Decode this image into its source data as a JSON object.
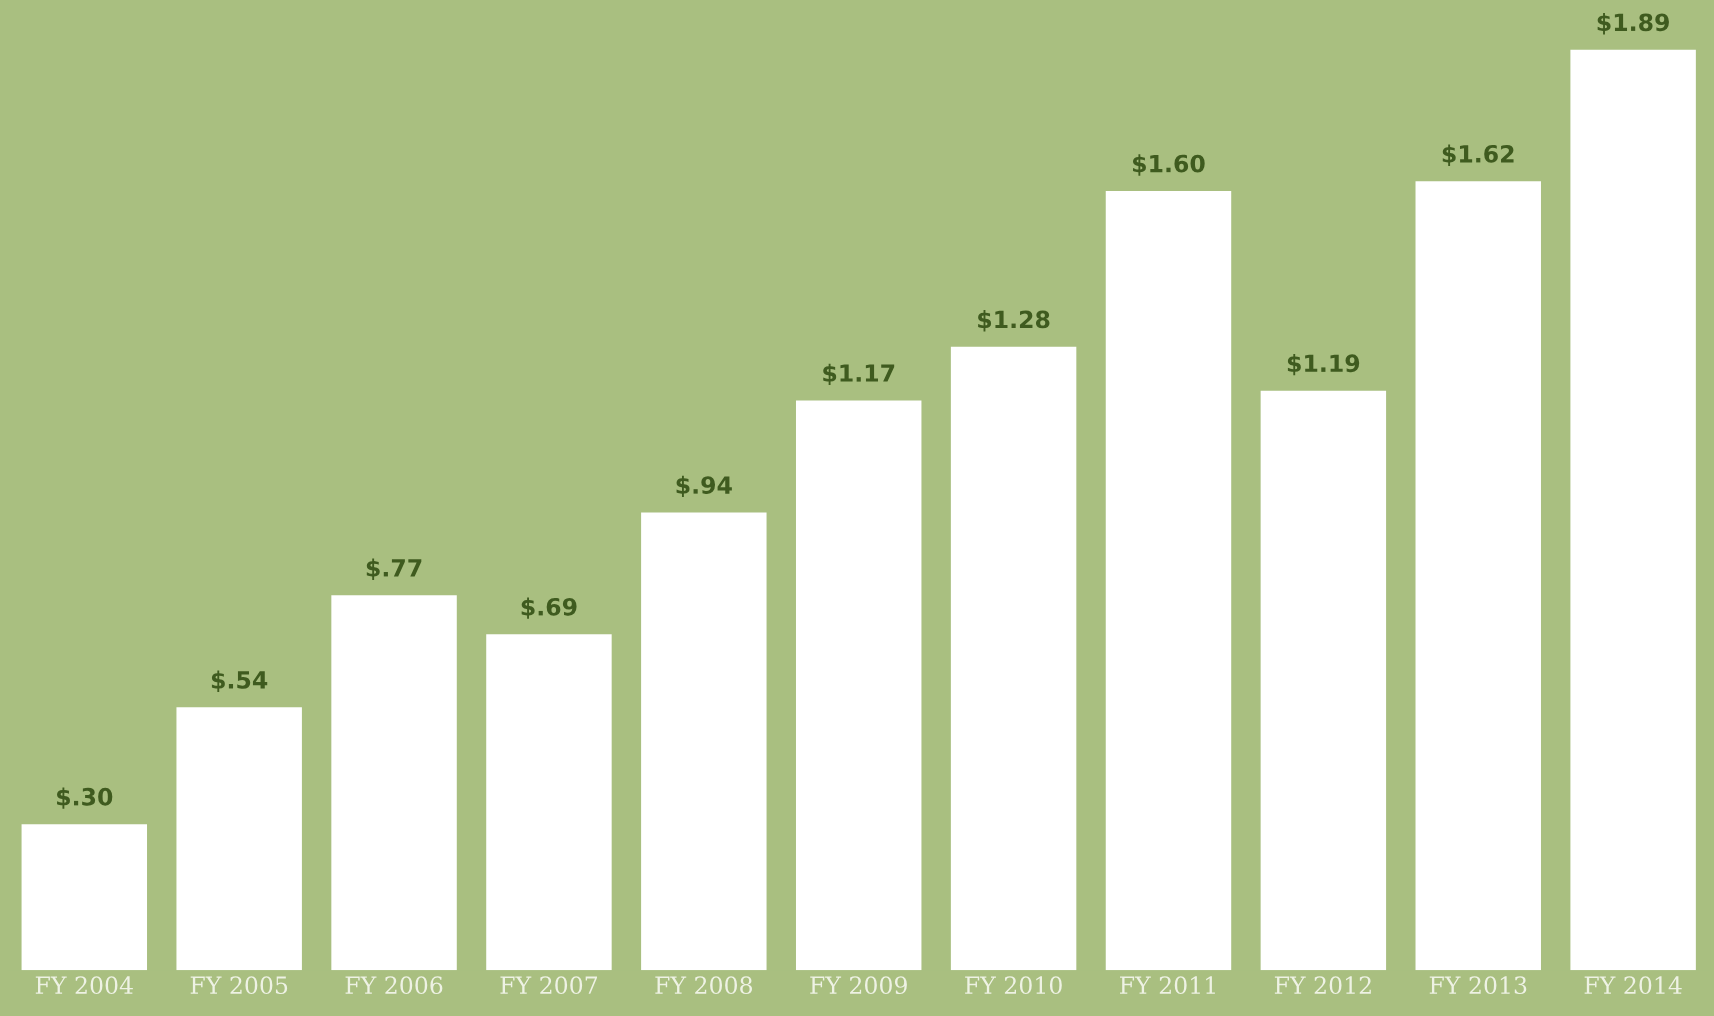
{
  "chart_data": {
    "type": "bar",
    "categories": [
      "FY 2004",
      "FY 2005",
      "FY 2006",
      "FY 2007",
      "FY 2008",
      "FY 2009",
      "FY 2010",
      "FY 2011",
      "FY 2012",
      "FY 2013",
      "FY 2014"
    ],
    "values": [
      0.3,
      0.54,
      0.77,
      0.69,
      0.94,
      1.17,
      1.28,
      1.6,
      1.19,
      1.62,
      1.89
    ],
    "value_labels": [
      "$.30",
      "$.54",
      "$.77",
      "$.69",
      "$.94",
      "$1.17",
      "$1.28",
      "$1.60",
      "$1.19",
      "$1.62",
      "$1.89"
    ],
    "color": "#ffffff",
    "grid": false,
    "legend": false
  }
}
